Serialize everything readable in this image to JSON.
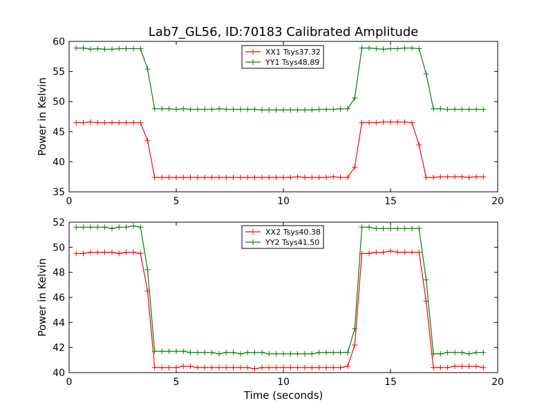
{
  "title": "Lab7_GL56, ID:70183 Calibrated Amplitude",
  "xlabel": "Time (seconds)",
  "colors": {
    "red": "#ff0000",
    "green": "#008000"
  },
  "chart_data": [
    {
      "type": "line",
      "ylabel": "Power in Kelvin",
      "xlim": [
        0,
        20
      ],
      "ylim": [
        35,
        60
      ],
      "xticks": [
        0,
        5,
        10,
        15,
        20
      ],
      "yticks": [
        35,
        40,
        45,
        50,
        55,
        60
      ],
      "legend_position": "top-center",
      "x": [
        0.33,
        0.66,
        1.0,
        1.33,
        1.66,
        2.0,
        2.33,
        2.66,
        3.0,
        3.33,
        3.66,
        3.99,
        4.33,
        4.66,
        5.0,
        5.33,
        5.66,
        6.0,
        6.33,
        6.66,
        7.0,
        7.33,
        7.66,
        8.0,
        8.33,
        8.66,
        9.0,
        9.33,
        9.66,
        10.0,
        10.33,
        10.66,
        11.0,
        11.33,
        11.66,
        12.0,
        12.33,
        12.66,
        13.0,
        13.33,
        13.66,
        14.0,
        14.33,
        14.66,
        15.0,
        15.33,
        15.66,
        16.0,
        16.33,
        16.66,
        17.0,
        17.33,
        17.66,
        18.0,
        18.33,
        18.66,
        19.0,
        19.33
      ],
      "series": [
        {
          "name": "XX1 Tsys37.32",
          "color": "#ff0000",
          "values": [
            46.5,
            46.5,
            46.6,
            46.5,
            46.5,
            46.5,
            46.5,
            46.5,
            46.5,
            46.5,
            43.5,
            37.4,
            37.4,
            37.4,
            37.4,
            37.4,
            37.4,
            37.4,
            37.4,
            37.4,
            37.4,
            37.4,
            37.4,
            37.4,
            37.4,
            37.4,
            37.4,
            37.4,
            37.4,
            37.4,
            37.4,
            37.5,
            37.4,
            37.4,
            37.4,
            37.4,
            37.5,
            37.4,
            37.4,
            39.1,
            46.5,
            46.5,
            46.5,
            46.6,
            46.6,
            46.6,
            46.6,
            46.5,
            42.8,
            37.4,
            37.4,
            37.5,
            37.5,
            37.5,
            37.5,
            37.4,
            37.5,
            37.5
          ]
        },
        {
          "name": "YY1 Tsys48.89",
          "color": "#008000",
          "values": [
            58.9,
            58.9,
            58.7,
            58.8,
            58.7,
            58.7,
            58.8,
            58.8,
            58.8,
            58.8,
            55.4,
            48.8,
            48.8,
            48.8,
            48.7,
            48.8,
            48.7,
            48.7,
            48.7,
            48.7,
            48.8,
            48.7,
            48.7,
            48.7,
            48.7,
            48.7,
            48.6,
            48.6,
            48.6,
            48.6,
            48.6,
            48.6,
            48.6,
            48.6,
            48.7,
            48.7,
            48.7,
            48.8,
            48.8,
            50.6,
            58.9,
            58.9,
            58.8,
            58.7,
            58.8,
            58.8,
            58.9,
            58.9,
            58.8,
            54.6,
            48.8,
            48.8,
            48.7,
            48.7,
            48.7,
            48.7,
            48.7,
            48.7
          ]
        }
      ]
    },
    {
      "type": "line",
      "ylabel": "Power in Kelvin",
      "xlim": [
        0,
        20
      ],
      "ylim": [
        40,
        52
      ],
      "xticks": [
        0,
        5,
        10,
        15,
        20
      ],
      "yticks": [
        40,
        42,
        44,
        46,
        48,
        50,
        52
      ],
      "legend_position": "top-center",
      "x": [
        0.33,
        0.66,
        1.0,
        1.33,
        1.66,
        2.0,
        2.33,
        2.66,
        3.0,
        3.33,
        3.66,
        3.99,
        4.33,
        4.66,
        5.0,
        5.33,
        5.66,
        6.0,
        6.33,
        6.66,
        7.0,
        7.33,
        7.66,
        8.0,
        8.33,
        8.66,
        9.0,
        9.33,
        9.66,
        10.0,
        10.33,
        10.66,
        11.0,
        11.33,
        11.66,
        12.0,
        12.33,
        12.66,
        13.0,
        13.33,
        13.66,
        14.0,
        14.33,
        14.66,
        15.0,
        15.33,
        15.66,
        16.0,
        16.33,
        16.66,
        17.0,
        17.33,
        17.66,
        18.0,
        18.33,
        18.66,
        19.0,
        19.33
      ],
      "series": [
        {
          "name": "XX2 Tsys40.38",
          "color": "#ff0000",
          "values": [
            49.5,
            49.5,
            49.6,
            49.6,
            49.6,
            49.6,
            49.5,
            49.6,
            49.6,
            49.5,
            46.5,
            40.4,
            40.4,
            40.4,
            40.4,
            40.5,
            40.5,
            40.4,
            40.4,
            40.4,
            40.4,
            40.4,
            40.4,
            40.4,
            40.4,
            40.3,
            40.4,
            40.4,
            40.4,
            40.4,
            40.4,
            40.4,
            40.4,
            40.4,
            40.4,
            40.4,
            40.4,
            40.4,
            40.5,
            42.2,
            49.5,
            49.5,
            49.6,
            49.6,
            49.7,
            49.6,
            49.6,
            49.6,
            49.6,
            45.7,
            40.4,
            40.4,
            40.4,
            40.5,
            40.5,
            40.5,
            40.5,
            40.4
          ]
        },
        {
          "name": "YY2 Tsys41.50",
          "color": "#008000",
          "values": [
            51.6,
            51.6,
            51.6,
            51.6,
            51.6,
            51.5,
            51.6,
            51.6,
            51.7,
            51.6,
            48.2,
            41.7,
            41.7,
            41.7,
            41.7,
            41.7,
            41.6,
            41.6,
            41.6,
            41.6,
            41.5,
            41.6,
            41.6,
            41.5,
            41.6,
            41.6,
            41.6,
            41.5,
            41.5,
            41.5,
            41.5,
            41.5,
            41.5,
            41.5,
            41.6,
            41.6,
            41.6,
            41.6,
            41.6,
            43.5,
            51.6,
            51.6,
            51.5,
            51.5,
            51.5,
            51.5,
            51.5,
            51.5,
            51.5,
            47.4,
            41.5,
            41.5,
            41.6,
            41.6,
            41.6,
            41.5,
            41.6,
            41.6
          ]
        }
      ]
    }
  ]
}
